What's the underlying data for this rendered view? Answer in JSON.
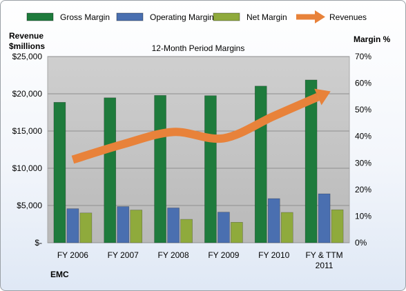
{
  "chart_data": {
    "type": "bar",
    "title": "12-Month Period Margins",
    "company": "EMC",
    "categories": [
      "FY 2006",
      "FY 2007",
      "FY 2008",
      "FY 2009",
      "FY 2010",
      "FY & TTM 2011"
    ],
    "y_left": {
      "label_line1": "Revenue",
      "label_line2": "$millions",
      "range": [
        0,
        25000
      ],
      "ticks": [
        "$-",
        "$5,000",
        "$10,000",
        "$15,000",
        "$20,000",
        "$25,000"
      ]
    },
    "y_right": {
      "label": "Margin %",
      "range": [
        0,
        70
      ],
      "ticks": [
        "0%",
        "10%",
        "20%",
        "30%",
        "40%",
        "50%",
        "60%",
        "70%"
      ]
    },
    "series": [
      {
        "name": "Gross Margin",
        "type": "bar",
        "axis": "right",
        "color": "#1e7b3c",
        "values": [
          52.8,
          54.5,
          55.4,
          55.3,
          58.9,
          61.2
        ]
      },
      {
        "name": "Operating Margin",
        "type": "bar",
        "axis": "right",
        "color": "#4a6fb0",
        "values": [
          12.8,
          13.6,
          13.1,
          11.5,
          16.6,
          18.4
        ]
      },
      {
        "name": "Net Margin",
        "type": "bar",
        "axis": "right",
        "color": "#8faa3c",
        "values": [
          11.2,
          12.3,
          8.8,
          7.7,
          11.4,
          12.4
        ]
      },
      {
        "name": "Revenues",
        "type": "line",
        "axis": "left",
        "color": "#e8823a",
        "values": [
          11155,
          13230,
          14876,
          14026,
          17015,
          19949
        ]
      }
    ],
    "grid": true,
    "legend": "top"
  }
}
